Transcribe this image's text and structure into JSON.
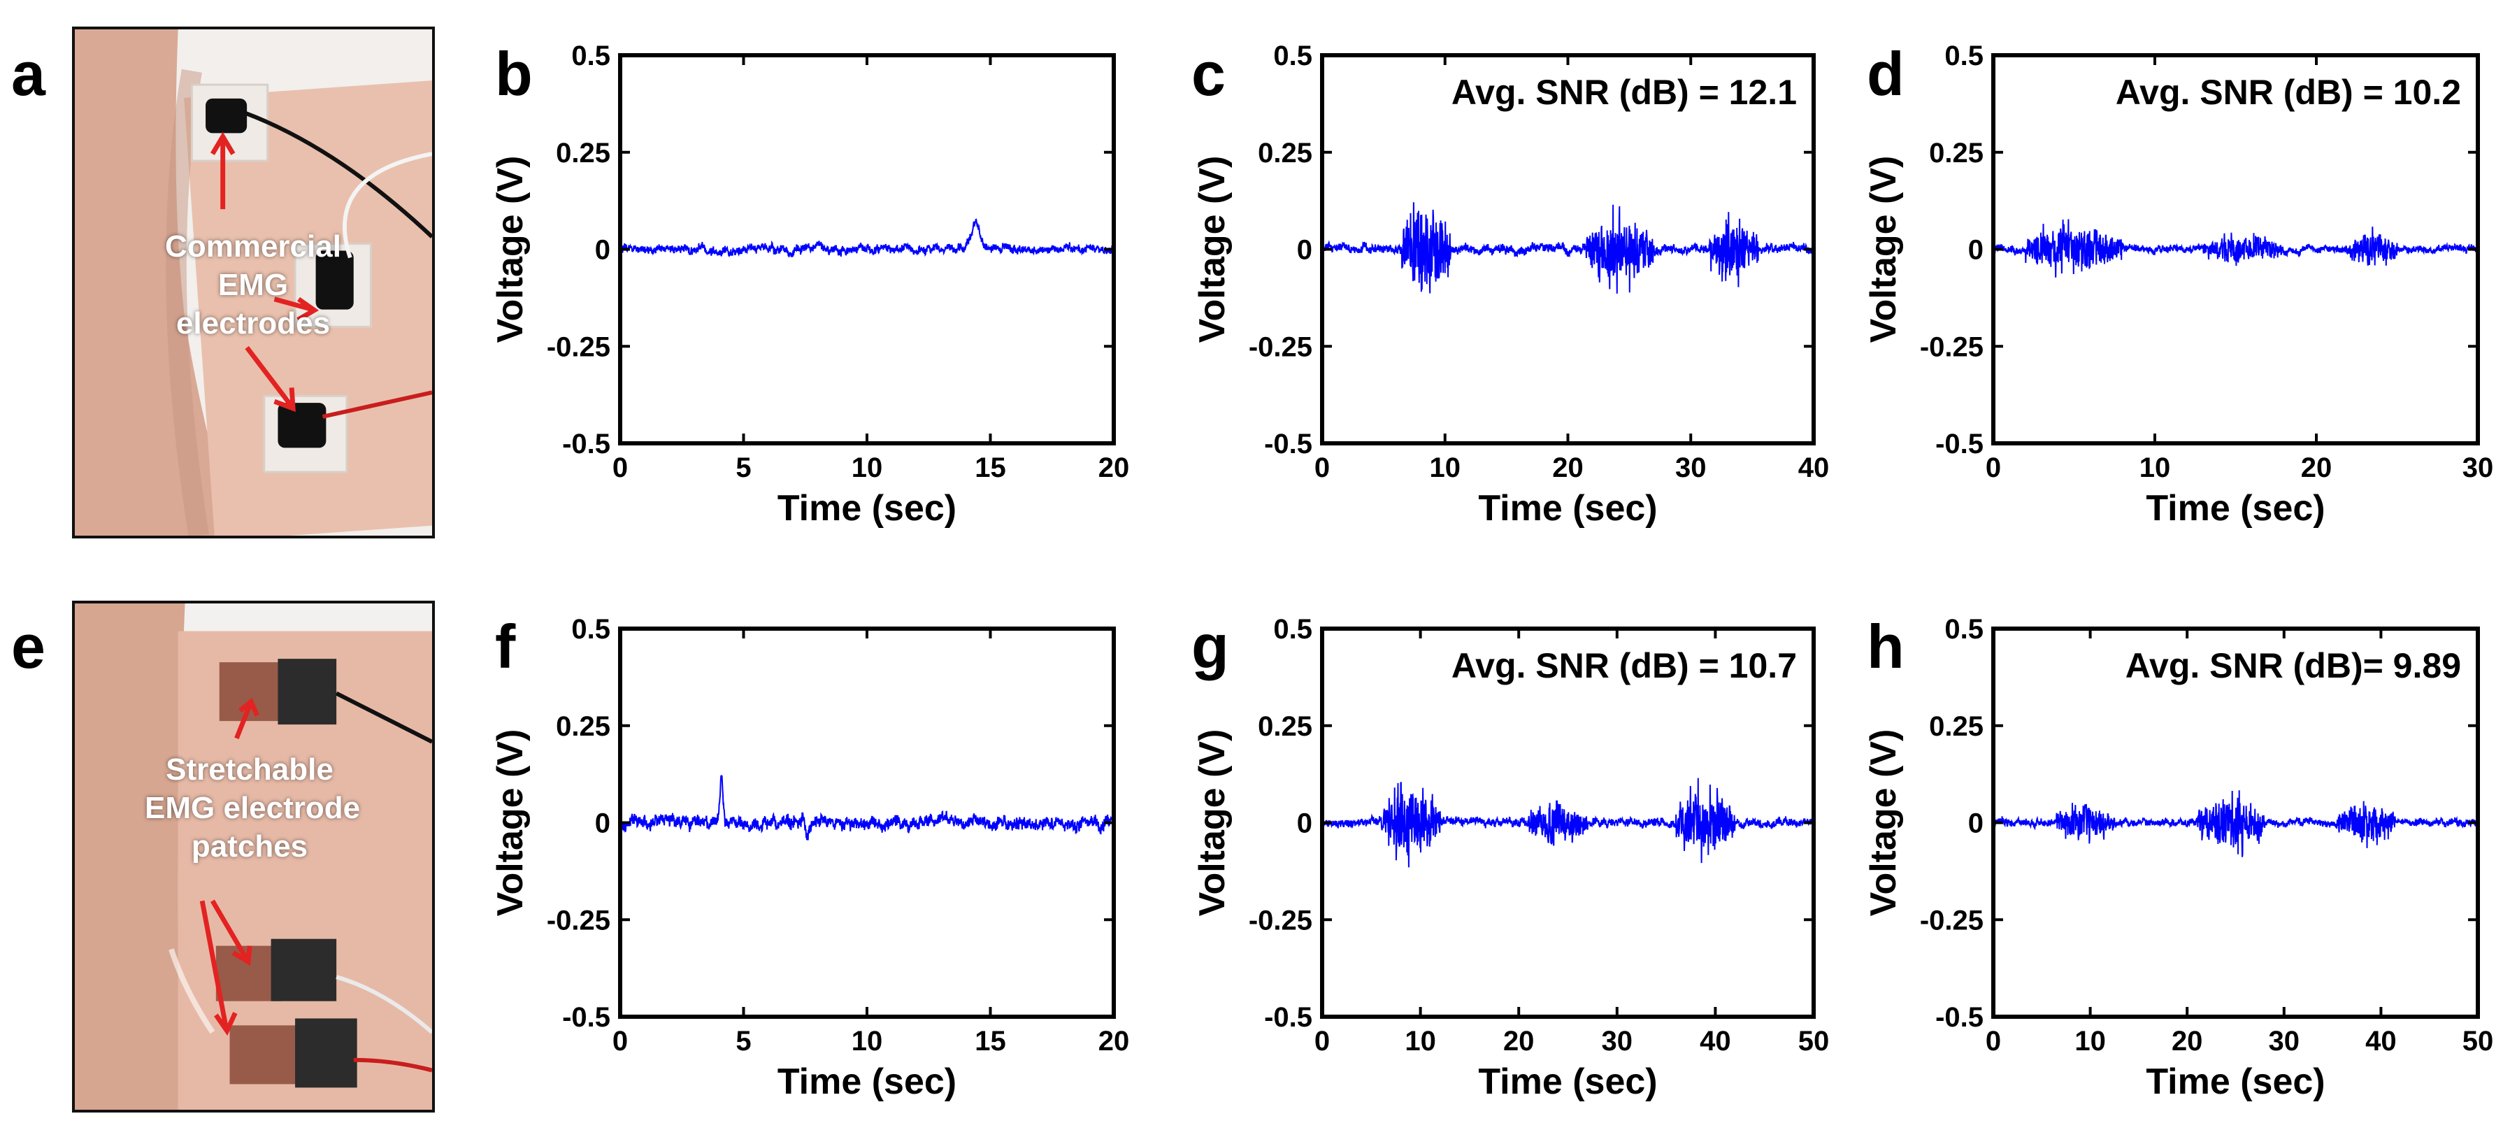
{
  "panel_letters": [
    "a",
    "b",
    "c",
    "d",
    "e",
    "f",
    "g",
    "h"
  ],
  "photos": {
    "a": {
      "letter": "a",
      "caption_lines": [
        "Commercial",
        "EMG",
        "electrodes"
      ]
    },
    "e": {
      "letter": "e",
      "caption_lines": [
        "Stretchable",
        "EMG electrode",
        "patches"
      ]
    }
  },
  "colors": {
    "signal": "#0000ff",
    "axes": "#000000",
    "arrow": "#e32222",
    "skin": "#d9a995",
    "wall": "#f3f1ef"
  },
  "chart_data": [
    {
      "panel": "b",
      "type": "line",
      "title": "",
      "annotation": "",
      "xlabel": "Time (sec)",
      "ylabel": "Voltage (V)",
      "xlim": [
        0,
        20
      ],
      "ylim": [
        -0.5,
        0.5
      ],
      "xticks": [
        0,
        5,
        10,
        15,
        20
      ],
      "yticks": [
        0.5,
        0.25,
        0,
        -0.25,
        -0.5
      ],
      "ytick_labels": [
        "0.5",
        "0.25",
        "0",
        "-0.25",
        "-0.5"
      ],
      "baseline_noise": 0.012,
      "bursts": [],
      "spikes": [
        {
          "x": 14.4,
          "y": 0.07,
          "w": 0.25
        }
      ],
      "series": [
        {
          "name": "EMG signal",
          "color": "#0000ff"
        }
      ]
    },
    {
      "panel": "c",
      "type": "line",
      "title": "",
      "annotation": "Avg. SNR (dB) = 12.1",
      "xlabel": "Time (sec)",
      "ylabel": "Voltage (V)",
      "xlim": [
        0,
        40
      ],
      "ylim": [
        -0.5,
        0.5
      ],
      "xticks": [
        0,
        10,
        20,
        30,
        40
      ],
      "yticks": [
        0.5,
        0.25,
        0,
        -0.25,
        -0.5
      ],
      "ytick_labels": [
        "0.5",
        "0.25",
        "0",
        "-0.25",
        "-0.5"
      ],
      "baseline_noise": 0.012,
      "bursts": [
        {
          "start": 6.5,
          "end": 10.5,
          "amp": 0.17
        },
        {
          "start": 21.5,
          "end": 27,
          "amp": 0.12
        },
        {
          "start": 31.5,
          "end": 35.5,
          "amp": 0.11
        }
      ],
      "spikes": [],
      "series": [
        {
          "name": "EMG signal",
          "color": "#0000ff"
        }
      ]
    },
    {
      "panel": "d",
      "type": "line",
      "title": "",
      "annotation": "Avg. SNR (dB) = 10.2",
      "xlabel": "Time (sec)",
      "ylabel": "Voltage (V)",
      "xlim": [
        0,
        30
      ],
      "ylim": [
        -0.5,
        0.5
      ],
      "xticks": [
        0,
        10,
        20,
        30
      ],
      "yticks": [
        0.5,
        0.25,
        0,
        -0.25,
        -0.5
      ],
      "ytick_labels": [
        "0.5",
        "0.25",
        "0",
        "-0.25",
        "-0.5"
      ],
      "baseline_noise": 0.01,
      "bursts": [
        {
          "start": 2,
          "end": 8,
          "amp": 0.08
        },
        {
          "start": 13,
          "end": 18,
          "amp": 0.05
        },
        {
          "start": 22,
          "end": 25,
          "amp": 0.06
        }
      ],
      "spikes": [],
      "series": [
        {
          "name": "EMG signal",
          "color": "#0000ff"
        }
      ]
    },
    {
      "panel": "f",
      "type": "line",
      "title": "",
      "annotation": "",
      "xlabel": "Time (sec)",
      "ylabel": "Voltage (V)",
      "xlim": [
        0,
        20
      ],
      "ylim": [
        -0.5,
        0.5
      ],
      "xticks": [
        0,
        5,
        10,
        15,
        20
      ],
      "yticks": [
        0.5,
        0.25,
        0,
        -0.25,
        -0.5
      ],
      "ytick_labels": [
        "0.5",
        "0.25",
        "0",
        "-0.25",
        "-0.5"
      ],
      "baseline_noise": 0.018,
      "bursts": [],
      "spikes": [
        {
          "x": 4.1,
          "y": 0.11,
          "w": 0.08
        },
        {
          "x": 7.6,
          "y": -0.04,
          "w": 0.1
        }
      ],
      "series": [
        {
          "name": "EMG signal",
          "color": "#0000ff"
        }
      ]
    },
    {
      "panel": "g",
      "type": "line",
      "title": "",
      "annotation": "Avg. SNR (dB) = 10.7",
      "xlabel": "Time (sec)",
      "ylabel": "Voltage (V)",
      "xlim": [
        0,
        50
      ],
      "ylim": [
        -0.5,
        0.5
      ],
      "xticks": [
        0,
        10,
        20,
        30,
        40,
        50
      ],
      "yticks": [
        0.5,
        0.25,
        0,
        -0.25,
        -0.5
      ],
      "ytick_labels": [
        "0.5",
        "0.25",
        "0",
        "-0.25",
        "-0.5"
      ],
      "baseline_noise": 0.012,
      "bursts": [
        {
          "start": 6,
          "end": 12,
          "amp": 0.12
        },
        {
          "start": 21,
          "end": 27,
          "amp": 0.08
        },
        {
          "start": 36,
          "end": 42,
          "amp": 0.12
        }
      ],
      "spikes": [],
      "series": [
        {
          "name": "EMG signal",
          "color": "#0000ff"
        }
      ]
    },
    {
      "panel": "h",
      "type": "line",
      "title": "",
      "annotation": "Avg. SNR (dB)= 9.89",
      "xlabel": "Time (sec)",
      "ylabel": "Voltage (V)",
      "xlim": [
        0,
        50
      ],
      "ylim": [
        -0.5,
        0.5
      ],
      "xticks": [
        0,
        10,
        20,
        30,
        40,
        50
      ],
      "yticks": [
        0.5,
        0.25,
        0,
        -0.25,
        -0.5
      ],
      "ytick_labels": [
        "0.5",
        "0.25",
        "0",
        "-0.25",
        "-0.5"
      ],
      "baseline_noise": 0.01,
      "bursts": [
        {
          "start": 6.5,
          "end": 12.5,
          "amp": 0.06
        },
        {
          "start": 21,
          "end": 28,
          "amp": 0.1
        },
        {
          "start": 35.5,
          "end": 41.5,
          "amp": 0.07
        }
      ],
      "spikes": [],
      "series": [
        {
          "name": "EMG signal",
          "color": "#0000ff"
        }
      ]
    }
  ]
}
